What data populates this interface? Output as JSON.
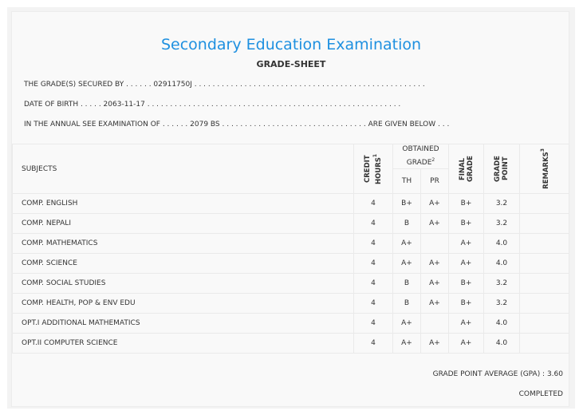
{
  "title": "Secondary Education Examination",
  "subtitle": "GRADE-SHEET",
  "lines": [
    "THE GRADE(S) SECURED BY . . . . . . 02911750J . . . . . . . . . . . . . . . . . . . . . . . . . . . . . . . . . . . . . . . . . . . . . . . . . . .",
    "DATE OF BIRTH . . . . . 2063-11-17 . . . . . . . . . . . . . . . . . . . . . . . . . . . . . . . . . . . . . . . . . . . . . . . . . . . . . . . .",
    "IN THE ANNUAL SEE EXAMINATION OF . . . . . . 2079 BS . . . . . . . . . . . . . . . . . . . . . . . . . . . . . . . . ARE GIVEN BELOW . . ."
  ],
  "headers": {
    "subjects": "SUBJECTS",
    "credit": "CREDIT HOURS",
    "credit_sup": "1",
    "obtained": "OBTAINED GRADE",
    "obtained_sup": "2",
    "th": "TH",
    "pr": "PR",
    "final": "FINAL GRADE",
    "gp": "GRADE POINT",
    "remarks": "REMARKS",
    "remarks_sup": "3"
  },
  "rows": [
    {
      "subject": "COMP. ENGLISH",
      "credit": "4",
      "th": "B+",
      "pr": "A+",
      "final": "B+",
      "gp": "3.2",
      "remarks": ""
    },
    {
      "subject": "COMP. NEPALI",
      "credit": "4",
      "th": "B",
      "pr": "A+",
      "final": "B+",
      "gp": "3.2",
      "remarks": ""
    },
    {
      "subject": "COMP. MATHEMATICS",
      "credit": "4",
      "th": "A+",
      "pr": "",
      "final": "A+",
      "gp": "4.0",
      "remarks": ""
    },
    {
      "subject": "COMP. SCIENCE",
      "credit": "4",
      "th": "A+",
      "pr": "A+",
      "final": "A+",
      "gp": "4.0",
      "remarks": ""
    },
    {
      "subject": "COMP. SOCIAL STUDIES",
      "credit": "4",
      "th": "B",
      "pr": "A+",
      "final": "B+",
      "gp": "3.2",
      "remarks": ""
    },
    {
      "subject": "COMP. HEALTH, POP & ENV EDU",
      "credit": "4",
      "th": "B",
      "pr": "A+",
      "final": "B+",
      "gp": "3.2",
      "remarks": ""
    },
    {
      "subject": "OPT.I ADDITIONAL MATHEMATICS",
      "credit": "4",
      "th": "A+",
      "pr": "",
      "final": "A+",
      "gp": "4.0",
      "remarks": ""
    },
    {
      "subject": "OPT.II COMPUTER SCIENCE",
      "credit": "4",
      "th": "A+",
      "pr": "A+",
      "final": "A+",
      "gp": "4.0",
      "remarks": ""
    }
  ],
  "gpa": "GRADE POINT AVERAGE (GPA) : 3.60",
  "status": "COMPLETED",
  "colors": {
    "title": "#1e90e0"
  }
}
